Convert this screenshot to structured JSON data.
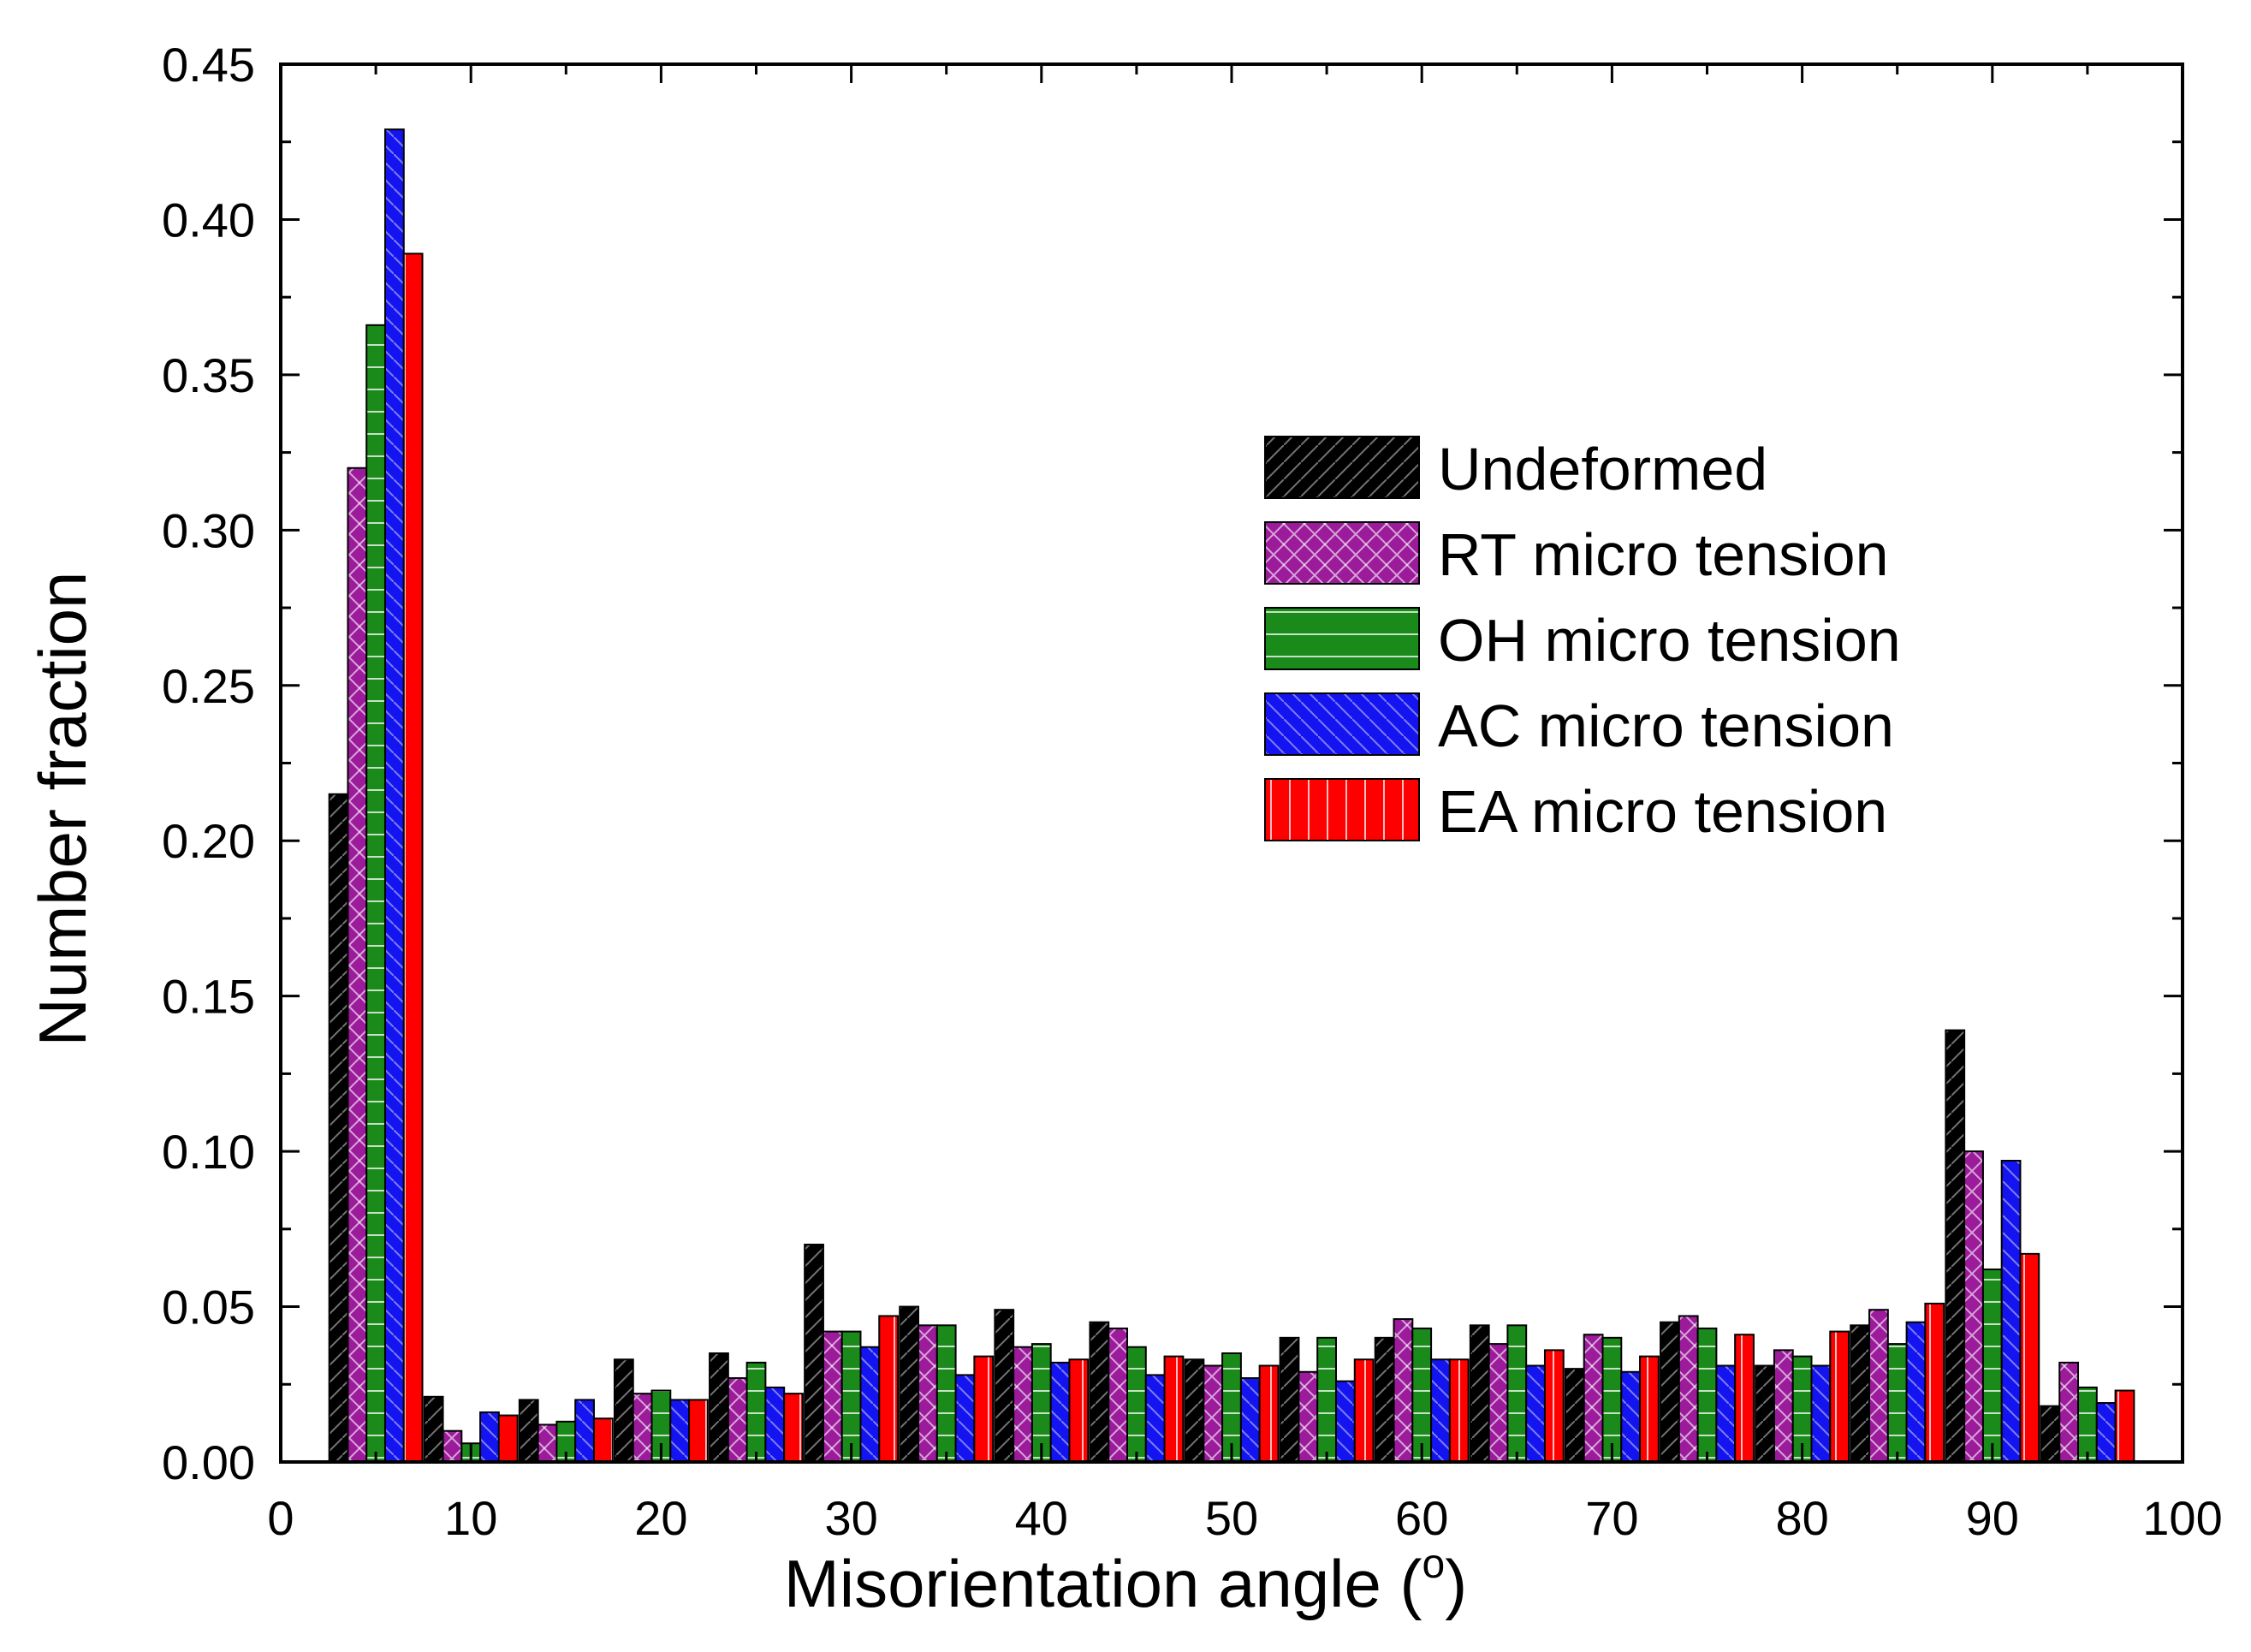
{
  "chart_data": {
    "type": "bar",
    "title": "",
    "xlabel": "Misorientation angle (",
    "xlabel_superscript": "o",
    "xlabel_suffix": ")",
    "ylabel": "Number fraction",
    "xlim": [
      0,
      100
    ],
    "ylim": [
      0,
      0.45
    ],
    "xticks": [
      "0",
      "10",
      "20",
      "30",
      "40",
      "50",
      "60",
      "70",
      "80",
      "90",
      "100"
    ],
    "yticks": [
      "0.00",
      "0.05",
      "0.10",
      "0.15",
      "0.20",
      "0.25",
      "0.30",
      "0.35",
      "0.40",
      "0.45"
    ],
    "grid": false,
    "legend_position": "right-center",
    "bin_centers": [
      5,
      10,
      15,
      20,
      25,
      30,
      35,
      40,
      45,
      50,
      55,
      60,
      65,
      70,
      75,
      80,
      85,
      90,
      95
    ],
    "series": [
      {
        "name": "Undeformed",
        "color": "#000000",
        "pattern": "hatch-diagonal",
        "values": [
          0.215,
          0.021,
          0.02,
          0.033,
          0.035,
          0.07,
          0.05,
          0.049,
          0.045,
          0.033,
          0.04,
          0.04,
          0.044,
          0.03,
          0.045,
          0.031,
          0.044,
          0.139,
          0.018
        ]
      },
      {
        "name": "RT micro tension",
        "color": "#9B1B9B",
        "pattern": "hatch-cross",
        "values": [
          0.32,
          0.01,
          0.012,
          0.022,
          0.027,
          0.042,
          0.044,
          0.037,
          0.043,
          0.031,
          0.029,
          0.046,
          0.038,
          0.041,
          0.047,
          0.036,
          0.049,
          0.1,
          0.032
        ]
      },
      {
        "name": "OH micro tension",
        "color": "#1A8A1A",
        "pattern": "hatch-horizontal",
        "values": [
          0.366,
          0.006,
          0.013,
          0.023,
          0.032,
          0.042,
          0.044,
          0.038,
          0.037,
          0.035,
          0.04,
          0.043,
          0.044,
          0.04,
          0.043,
          0.034,
          0.038,
          0.062,
          0.024
        ]
      },
      {
        "name": "AC micro tension",
        "color": "#1414F0",
        "pattern": "hatch-backslash",
        "values": [
          0.429,
          0.016,
          0.02,
          0.02,
          0.024,
          0.037,
          0.028,
          0.032,
          0.028,
          0.027,
          0.026,
          0.033,
          0.031,
          0.029,
          0.031,
          0.031,
          0.045,
          0.097,
          0.019
        ]
      },
      {
        "name": "EA micro tension",
        "color": "#FF0000",
        "pattern": "hatch-vertical",
        "values": [
          0.389,
          0.015,
          0.014,
          0.02,
          0.022,
          0.047,
          0.034,
          0.033,
          0.034,
          0.031,
          0.033,
          0.033,
          0.036,
          0.034,
          0.041,
          0.042,
          0.051,
          0.067,
          0.023
        ]
      }
    ]
  }
}
